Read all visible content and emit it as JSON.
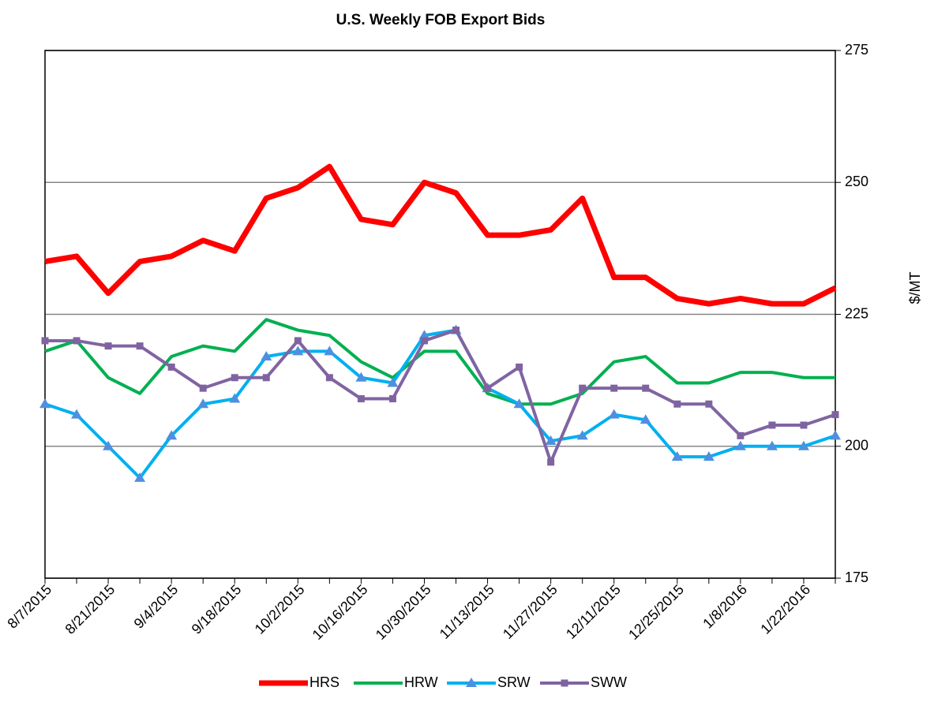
{
  "chart_data": {
    "type": "line",
    "title": "U.S. Weekly FOB Export Bids",
    "y_label": "$/MT",
    "categories": [
      "8/7/2015",
      null,
      "8/21/2015",
      null,
      "9/4/2015",
      null,
      "9/18/2015",
      null,
      "10/2/2015",
      null,
      "10/16/2015",
      null,
      "10/30/2015",
      null,
      "11/13/2015",
      null,
      "11/27/2015",
      null,
      "12/11/2015",
      null,
      "12/25/2015",
      null,
      "1/8/2016",
      null,
      "1/22/2016",
      null
    ],
    "series": [
      {
        "name": "HRS",
        "color": "#ff0000",
        "marker": null,
        "values": [
          235,
          236,
          229,
          235,
          236,
          239,
          237,
          247,
          249,
          253,
          243,
          242,
          250,
          248,
          240,
          240,
          241,
          247,
          232,
          232,
          228,
          227,
          228,
          227,
          227,
          230
        ]
      },
      {
        "name": "HRW",
        "color": "#00b050",
        "marker": null,
        "values": [
          218,
          220,
          213,
          210,
          217,
          219,
          218,
          224,
          222,
          221,
          216,
          213,
          218,
          218,
          210,
          208,
          208,
          210,
          216,
          217,
          212,
          212,
          214,
          214,
          213,
          213
        ]
      },
      {
        "name": "SRW",
        "color": "#00b0f0",
        "marker": "triangle",
        "marker_color": "#4f8fdf",
        "values": [
          208,
          206,
          200,
          194,
          202,
          208,
          209,
          217,
          218,
          218,
          213,
          212,
          221,
          222,
          211,
          208,
          201,
          202,
          206,
          205,
          198,
          198,
          200,
          200,
          200,
          202
        ]
      },
      {
        "name": "SWW",
        "color": "#8064a2",
        "marker": "square",
        "marker_color": "#7f63a1",
        "values": [
          220,
          220,
          219,
          219,
          215,
          211,
          213,
          213,
          220,
          213,
          209,
          209,
          220,
          222,
          211,
          215,
          197,
          211,
          211,
          211,
          208,
          208,
          202,
          204,
          204,
          206
        ]
      }
    ],
    "ylim": [
      175,
      275
    ],
    "yticks": [
      175,
      200,
      225,
      250,
      275
    ],
    "grid": true,
    "y_axis_side": "right",
    "legend": "bottom"
  }
}
